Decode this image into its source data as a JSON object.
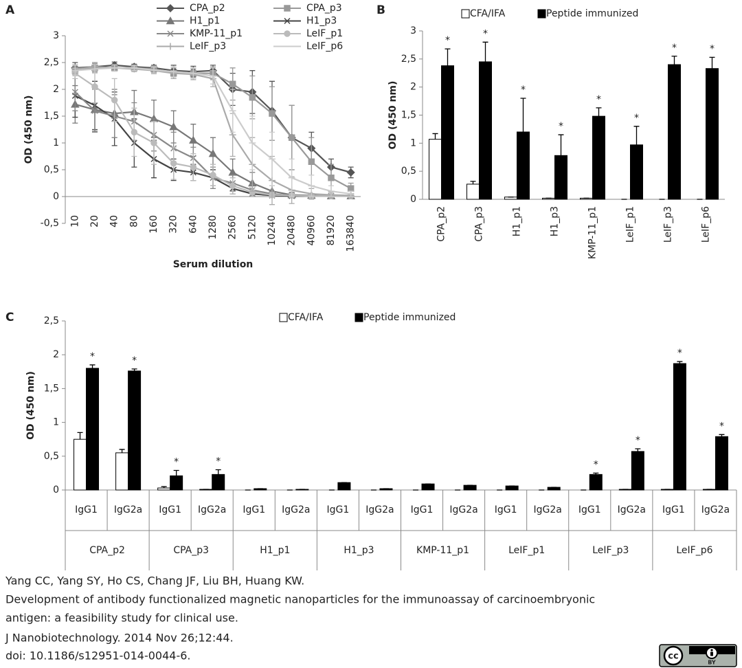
{
  "chart_data": [
    {
      "type": "line",
      "panel": "A",
      "x_label": "Serum dilution",
      "y_label": "OD (450 nm)",
      "categories": [
        "10",
        "20",
        "40",
        "80",
        "160",
        "320",
        "640",
        "1280",
        "2560",
        "5120",
        "10240",
        "20480",
        "40960",
        "81920",
        "163840"
      ],
      "ylim": [
        -0.5,
        3
      ],
      "yticks": [
        {
          "value": -0.5,
          "label": "-0,5"
        },
        0,
        {
          "value": 0.5,
          "label": "0,5"
        },
        1,
        {
          "value": 1.5,
          "label": "1,5"
        },
        2,
        {
          "value": 2.5,
          "label": "2,5"
        },
        3
      ],
      "series": [
        {
          "name": "CPA_p2",
          "color": "#555555",
          "marker": "diamond",
          "values": [
            2.4,
            2.42,
            2.45,
            2.42,
            2.4,
            2.35,
            2.33,
            2.35,
            2.0,
            1.95,
            1.6,
            1.1,
            0.9,
            0.55,
            0.45
          ],
          "errors": [
            0.1,
            0.08,
            0.06,
            0.05,
            0.05,
            0.1,
            0.1,
            0.1,
            0.3,
            0.4,
            0.55,
            0.6,
            0.3,
            0.15,
            0.1
          ]
        },
        {
          "name": "CPA_p3",
          "color": "#999999",
          "marker": "square",
          "values": [
            2.35,
            2.4,
            2.4,
            2.4,
            2.38,
            2.3,
            2.3,
            2.3,
            2.1,
            1.85,
            1.55,
            1.1,
            0.65,
            0.35,
            0.15
          ],
          "errors": [
            0.08,
            0.08,
            0.06,
            0.05,
            0.06,
            0.1,
            0.1,
            0.12,
            0.3,
            0.4,
            0.5,
            0.6,
            0.45,
            0.25,
            0.1
          ]
        },
        {
          "name": "H1_p1",
          "color": "#777777",
          "marker": "triangle",
          "values": [
            1.72,
            1.62,
            1.55,
            1.58,
            1.45,
            1.3,
            1.05,
            0.8,
            0.45,
            0.25,
            0.1,
            0.03,
            0.02,
            0.01,
            0.01
          ],
          "errors": [
            0.35,
            0.4,
            0.45,
            0.4,
            0.35,
            0.3,
            0.3,
            0.3,
            0.25,
            0.2,
            0.1,
            0.05,
            0.03,
            0.02,
            0.02
          ]
        },
        {
          "name": "H1_p3",
          "color": "#444444",
          "marker": "x",
          "values": [
            1.88,
            1.7,
            1.45,
            1.0,
            0.7,
            0.5,
            0.45,
            0.35,
            0.15,
            0.05,
            0.02,
            0.01,
            0.01,
            0.01,
            0.01
          ],
          "errors": [
            0.4,
            0.45,
            0.5,
            0.45,
            0.35,
            0.2,
            0.15,
            0.15,
            0.1,
            0.05,
            0.03,
            0.02,
            0.02,
            0.02,
            0.02
          ]
        },
        {
          "name": "KMP-11_p1",
          "color": "#888888",
          "marker": "x",
          "values": [
            1.95,
            1.6,
            1.5,
            1.4,
            1.15,
            0.9,
            0.72,
            0.35,
            0.25,
            0.12,
            0.05,
            0.02,
            0.01,
            0.01,
            0.01
          ],
          "errors": [
            0.35,
            0.4,
            0.4,
            0.35,
            0.3,
            0.3,
            0.2,
            0.2,
            0.15,
            0.1,
            0.05,
            0.03,
            0.02,
            0.02,
            0.02
          ]
        },
        {
          "name": "LeIF_p1",
          "color": "#bbbbbb",
          "marker": "circle",
          "values": [
            2.3,
            2.05,
            1.8,
            1.2,
            1.0,
            0.62,
            0.55,
            0.4,
            0.2,
            0.08,
            0.03,
            0.02,
            0.01,
            0.01,
            0.01
          ],
          "errors": [
            0.1,
            0.3,
            0.4,
            0.45,
            0.4,
            0.3,
            0.25,
            0.2,
            0.15,
            0.08,
            0.05,
            0.03,
            0.02,
            0.02,
            0.02
          ]
        },
        {
          "name": "LeIF_p3",
          "color": "#aaaaaa",
          "marker": "plus",
          "values": [
            2.38,
            2.42,
            2.4,
            2.38,
            2.35,
            2.3,
            2.28,
            2.2,
            1.15,
            0.6,
            0.3,
            0.12,
            0.05,
            0.03,
            0.02
          ],
          "errors": [
            0.08,
            0.08,
            0.06,
            0.05,
            0.06,
            0.1,
            0.1,
            0.15,
            0.4,
            0.5,
            0.45,
            0.25,
            0.1,
            0.05,
            0.03
          ]
        },
        {
          "name": "LeIF_p6",
          "color": "#cccccc",
          "marker": "dash",
          "values": [
            2.35,
            2.38,
            2.4,
            2.4,
            2.36,
            2.33,
            2.3,
            2.25,
            1.6,
            1.0,
            0.7,
            0.35,
            0.2,
            0.1,
            0.05
          ],
          "errors": [
            0.1,
            0.08,
            0.06,
            0.05,
            0.06,
            0.1,
            0.1,
            0.15,
            0.4,
            0.5,
            0.5,
            0.35,
            0.2,
            0.1,
            0.05
          ]
        }
      ]
    },
    {
      "type": "bar",
      "panel": "B",
      "y_label": "OD (450 nm)",
      "categories": [
        "CPA_p2",
        "CPA_p3",
        "H1_p1",
        "H1_p3",
        "KMP-11_p1",
        "LeIF_p1",
        "LeIF_p3",
        "LeIF_p6"
      ],
      "ylim": [
        0,
        3
      ],
      "yticks": [
        0,
        {
          "value": 0.5,
          "label": "0,5"
        },
        1,
        {
          "value": 1.5,
          "label": "1,5"
        },
        2,
        {
          "value": 2.5,
          "label": "2,5"
        },
        3
      ],
      "series": [
        {
          "name": "CFA/IFA",
          "color": "#ffffff",
          "values": [
            1.07,
            0.27,
            0.04,
            0.02,
            0.02,
            0,
            0,
            0
          ],
          "errors": [
            0.1,
            0.05,
            0,
            0,
            0,
            0,
            0,
            0
          ]
        },
        {
          "name": "Peptide immunized",
          "color": "#000000",
          "values": [
            2.38,
            2.45,
            1.2,
            0.78,
            1.48,
            0.97,
            2.4,
            2.33
          ],
          "errors": [
            0.3,
            0.35,
            0.6,
            0.37,
            0.15,
            0.33,
            0.15,
            0.2
          ]
        }
      ],
      "annotations": [
        "*",
        "*",
        "*",
        "*",
        "*",
        "*",
        "*",
        "*"
      ]
    },
    {
      "type": "bar",
      "panel": "C",
      "y_label": "OD (450 nm)",
      "categories": [
        "IgG1",
        "IgG2a",
        "IgG1",
        "IgG2a",
        "IgG1",
        "IgG2a",
        "IgG1",
        "IgG2a",
        "IgG1",
        "IgG2a",
        "IgG1",
        "IgG2a",
        "IgG1",
        "IgG2a",
        "IgG1",
        "IgG2a"
      ],
      "groups": [
        "CPA_p2",
        "CPA_p3",
        "H1_p1",
        "H1_p3",
        "KMP-11_p1",
        "LeIF_p1",
        "LeIF_p3",
        "LeIF_p6"
      ],
      "ylim": [
        0,
        2.5
      ],
      "yticks": [
        0,
        {
          "value": 0.5,
          "label": "0,5"
        },
        1,
        {
          "value": 1.5,
          "label": "1,5"
        },
        2,
        {
          "value": 2.5,
          "label": "2,5"
        }
      ],
      "series": [
        {
          "name": "CFA/IFA",
          "color": "#ffffff",
          "values": [
            0.75,
            0.55,
            0.03,
            0.01,
            0,
            0,
            0,
            0,
            0,
            0,
            0,
            0,
            0,
            0.01,
            0.01,
            0.01
          ],
          "errors": [
            0.1,
            0.05,
            0.02,
            0,
            0,
            0,
            0,
            0,
            0,
            0,
            0,
            0,
            0,
            0,
            0,
            0
          ]
        },
        {
          "name": "Peptide immunized",
          "color": "#000000",
          "values": [
            1.8,
            1.76,
            0.21,
            0.23,
            0.02,
            0.01,
            0.11,
            0.02,
            0.09,
            0.07,
            0.06,
            0.04,
            0.23,
            0.57,
            1.87,
            0.79
          ],
          "errors": [
            0.05,
            0.03,
            0.08,
            0.07,
            0,
            0,
            0,
            0,
            0,
            0,
            0,
            0,
            0.02,
            0.04,
            0.03,
            0.03
          ]
        }
      ],
      "annotations": [
        "*",
        "*",
        "*",
        "*",
        null,
        null,
        null,
        null,
        null,
        null,
        null,
        null,
        "*",
        "*",
        "*",
        "*"
      ]
    }
  ],
  "citation": [
    "Yang CC, Yang SY, Ho CS, Chang JF, Liu BH, Huang KW.",
    "Development of antibody functionalized magnetic nanoparticles for the immunoassay of carcinoembryonic",
    "antigen: a feasibility study for clinical use.",
    "J Nanobiotechnology. 2014 Nov 26;12:44.",
    "doi: 10.1186/s12951-014-0044-6."
  ],
  "license": {
    "mark": "cc",
    "by": "BY"
  }
}
